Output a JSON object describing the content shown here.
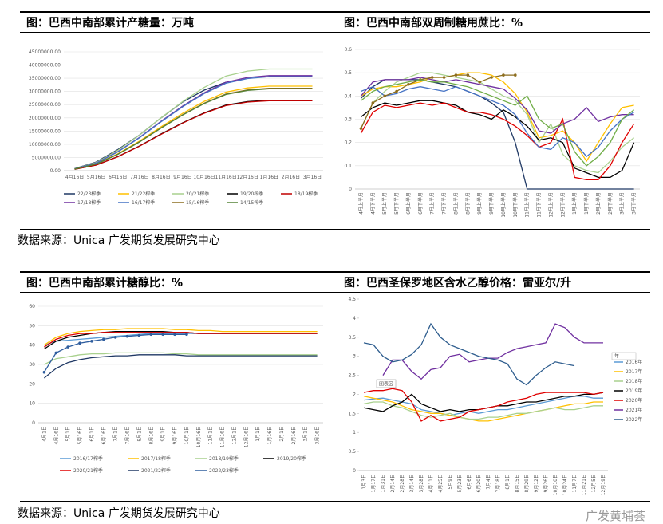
{
  "chart_data": [
    {
      "type": "line",
      "title": "图：巴西中南部累计产糖量：万吨",
      "categories": [
        "4月16日",
        "5月16日",
        "6月16日",
        "7月16日",
        "8月16日",
        "9月16日",
        "10月16日",
        "11月16日",
        "12月16日",
        "1月16日",
        "2月16日",
        "3月16日"
      ],
      "ylim": [
        0,
        45000000
      ],
      "yticks": [
        {
          "value": 0,
          "label": "0.00"
        },
        {
          "value": 5000000,
          "label": "5000000.00"
        },
        {
          "value": 10000000,
          "label": "10000000.00"
        },
        {
          "value": 15000000,
          "label": "15000000.00"
        },
        {
          "value": 20000000,
          "label": "20000000.00"
        },
        {
          "value": 25000000,
          "label": "25000000.00"
        },
        {
          "value": 30000000,
          "label": "30000000.00"
        },
        {
          "value": 35000000,
          "label": "35000000.00"
        },
        {
          "value": 40000000,
          "label": "40000000.00"
        },
        {
          "value": 45000000,
          "label": "45000000.00"
        }
      ],
      "grid": true,
      "legend": "bottom",
      "series": [
        {
          "name": "22/23榨季",
          "color": "#1f3864",
          "values": [
            800000,
            3300000,
            8000000,
            13500000,
            20000000,
            26000000,
            30500000,
            33500000,
            null,
            null,
            null,
            null
          ]
        },
        {
          "name": "21/22榨季",
          "color": "#ffc000",
          "values": [
            640000,
            2560000,
            6400000,
            11200000,
            16640000,
            21760000,
            26240000,
            29760000,
            31360000,
            32000000,
            32000000,
            32000000
          ]
        },
        {
          "name": "20/21榨季",
          "color": "#a9d18e",
          "values": [
            770000,
            3080000,
            7700000,
            13475000,
            20020000,
            26180000,
            31570000,
            35805000,
            37730000,
            38500000,
            38500000,
            38500000
          ]
        },
        {
          "name": "19/20榨季",
          "color": "#000000",
          "values": [
            534000,
            2136000,
            5340000,
            9345000,
            13884000,
            18156000,
            21894000,
            24831000,
            26166000,
            26700000,
            26700000,
            26700000
          ]
        },
        {
          "name": "18/19榨季",
          "color": "#c00000",
          "values": [
            530000,
            2120000,
            5300000,
            9275000,
            13780000,
            18020000,
            21730000,
            24645000,
            25970000,
            26500000,
            26500000,
            26500000
          ]
        },
        {
          "name": "17/18榨季",
          "color": "#7030a0",
          "values": [
            720000,
            2880000,
            7200000,
            12600000,
            18720000,
            24480000,
            29520000,
            33480000,
            35280000,
            36000000,
            36000000,
            36000000
          ]
        },
        {
          "name": "16/17榨季",
          "color": "#4472c4",
          "values": [
            712000,
            2848000,
            7120000,
            12460000,
            18512000,
            24208000,
            29192000,
            33108000,
            34888000,
            35600000,
            35600000,
            35600000
          ]
        },
        {
          "name": "15/16榨季",
          "color": "#8c6d1f",
          "values": [
            624000,
            2496000,
            6240000,
            10920000,
            16224000,
            21216000,
            25584000,
            29016000,
            30576000,
            31200000,
            31200000,
            31200000
          ]
        },
        {
          "name": "14/15榨季",
          "color": "#548235",
          "values": [
            620000,
            2480000,
            6200000,
            10850000,
            16120000,
            21080000,
            25420000,
            28830000,
            30380000,
            31000000,
            31000000,
            31000000
          ]
        }
      ]
    },
    {
      "type": "line",
      "title": "图：巴西中南部双周制糖用蔗比：%",
      "categories": [
        "4月上半月",
        "4月下半月",
        "5月上半月",
        "5月下半月",
        "6月上半月",
        "6月下半月",
        "7月上半月",
        "7月下半月",
        "8月上半月",
        "8月下半月",
        "9月上半月",
        "9月下半月",
        "10月上半月",
        "10月下半月",
        "11月上半月",
        "11月下半月",
        "12月上半月",
        "12月下半月",
        "1月上半月",
        "1月下半月",
        "2月上半月",
        "2月下半月",
        "3月上半月",
        "3月下半月"
      ],
      "ylim": [
        0,
        0.6
      ],
      "yticks": [
        0,
        0.1,
        0.2,
        0.3,
        0.4,
        0.5,
        0.6
      ],
      "grid": true,
      "series": [
        {
          "color": "#1f3864",
          "values": [
            0.39,
            0.44,
            0.47,
            0.47,
            0.47,
            0.47,
            0.46,
            0.45,
            0.44,
            0.42,
            0.4,
            0.37,
            0.33,
            0.2,
            0,
            0,
            0,
            0,
            0,
            0,
            0,
            0,
            0,
            0
          ]
        },
        {
          "color": "#ffc000",
          "values": [
            0.4,
            0.43,
            0.44,
            0.44,
            0.45,
            0.46,
            0.48,
            0.48,
            0.49,
            0.5,
            0.5,
            0.49,
            0.46,
            0.41,
            0.33,
            0.22,
            0.23,
            0.25,
            0.2,
            0.12,
            0.2,
            0.28,
            0.35,
            0.36
          ]
        },
        {
          "color": "#a9d18e",
          "values": [
            0.26,
            0.37,
            0.42,
            0.46,
            0.48,
            0.5,
            0.5,
            0.49,
            0.48,
            0.47,
            0.46,
            0.43,
            0.4,
            0.38,
            0.32,
            0.2,
            0.28,
            0.15,
            0.1,
            0.08,
            0.07,
            0.12,
            0.18,
            0.22
          ]
        },
        {
          "color": "#000000",
          "values": [
            0.31,
            0.35,
            0.37,
            0.36,
            0.37,
            0.38,
            0.38,
            0.37,
            0.36,
            0.33,
            0.32,
            0.3,
            0.34,
            0.31,
            0.27,
            0.21,
            0.22,
            0.2,
            0.09,
            0.07,
            0.05,
            0.05,
            0.08,
            0.2
          ]
        },
        {
          "color": "#e00000",
          "values": [
            0.24,
            0.33,
            0.36,
            0.35,
            0.36,
            0.37,
            0.36,
            0.37,
            0.35,
            0.33,
            0.33,
            0.32,
            0.3,
            0.27,
            0.23,
            0.18,
            0.2,
            0.3,
            0.05,
            0.04,
            0.04,
            0.1,
            0.2,
            0.28
          ]
        },
        {
          "color": "#7030a0",
          "values": [
            0.4,
            0.46,
            0.47,
            0.47,
            0.47,
            0.48,
            0.47,
            0.46,
            0.47,
            0.46,
            0.45,
            0.44,
            0.43,
            0.39,
            0.34,
            0.25,
            0.24,
            0.28,
            0.3,
            0.35,
            0.29,
            0.31,
            0.32,
            0.32
          ]
        },
        {
          "color": "#4472c4",
          "values": [
            0.42,
            0.44,
            0.4,
            0.41,
            0.43,
            0.44,
            0.43,
            0.42,
            0.44,
            0.42,
            0.4,
            0.38,
            0.36,
            0.32,
            0.24,
            0.18,
            0.17,
            0.22,
            0.2,
            0.14,
            0.18,
            0.25,
            0.3,
            0.33
          ]
        },
        {
          "color": "#8c6d1f",
          "marker": true,
          "values": [
            0.26,
            0.37,
            0.4,
            0.42,
            0.45,
            0.47,
            0.48,
            0.48,
            0.49,
            0.49,
            0.46,
            0.48,
            0.49,
            0.49,
            null,
            null,
            null,
            null,
            null,
            null,
            null,
            null,
            null,
            null
          ]
        },
        {
          "color": "#70ad47",
          "values": [
            0.38,
            0.42,
            0.44,
            0.45,
            0.46,
            0.47,
            0.46,
            0.46,
            0.45,
            0.44,
            0.42,
            0.4,
            0.38,
            0.36,
            0.4,
            0.3,
            0.26,
            0.28,
            0.16,
            0.1,
            0.14,
            0.2,
            0.3,
            0.34
          ]
        }
      ]
    },
    {
      "type": "line",
      "title": "图：巴西中南部累计糖醇比：%",
      "categories": [
        "4月1日",
        "4月16日",
        "5月1日",
        "5月16日",
        "6月1日",
        "6月16日",
        "7月1日",
        "7月16日",
        "8月1日",
        "8月16日",
        "9月1日",
        "9月16日",
        "10月1日",
        "10月16日",
        "11月1日",
        "11月16日",
        "12月1日",
        "12月16日",
        "1月1日",
        "1月16日",
        "2月1日",
        "2月16日",
        "3月1日",
        "3月16日"
      ],
      "ylim": [
        0,
        60
      ],
      "yticks": [
        0,
        10,
        20,
        30,
        40,
        50,
        60
      ],
      "grid": true,
      "legend": "bottom",
      "series": [
        {
          "name": "2016/17榨季",
          "color": "#5b9bd5",
          "values": [
            40,
            42,
            42.5,
            43,
            43.5,
            44,
            44.5,
            45,
            45.5,
            46,
            46,
            46,
            46,
            46,
            46,
            46,
            46,
            46,
            46,
            46,
            46,
            46,
            46,
            46
          ]
        },
        {
          "name": "2017/18榨季",
          "color": "#ffc000",
          "values": [
            40,
            44,
            46,
            47,
            47.5,
            48,
            48,
            48.5,
            48.5,
            48.5,
            48.5,
            48,
            48,
            47.5,
            47.5,
            47,
            47,
            47,
            47,
            47,
            47,
            47,
            47,
            47
          ]
        },
        {
          "name": "2018/19榨季",
          "color": "#a9d18e",
          "values": [
            30,
            33,
            34,
            35,
            35.5,
            35.5,
            36,
            36,
            36,
            36,
            36,
            35.5,
            35.5,
            35,
            35,
            35,
            35,
            35,
            35,
            35,
            35,
            35,
            35,
            35
          ]
        },
        {
          "name": "2019/20榨季",
          "color": "#000000",
          "values": [
            38,
            42,
            44,
            45,
            46,
            46.5,
            47,
            47,
            47,
            47,
            47,
            46.5,
            46.5,
            46,
            46,
            46,
            46,
            46,
            46,
            46,
            46,
            46,
            46,
            46
          ]
        },
        {
          "name": "2020/21榨季",
          "color": "#e00000",
          "values": [
            39,
            43,
            45,
            46,
            46,
            46.5,
            46.5,
            46.5,
            46.5,
            46.5,
            46.5,
            46.5,
            46.5,
            46,
            46,
            46,
            46,
            46,
            46,
            46,
            46,
            46,
            46,
            46
          ]
        },
        {
          "name": "2021/22榨季",
          "color": "#1f3864",
          "values": [
            23,
            28,
            31,
            32.5,
            33.5,
            34,
            34.5,
            34.5,
            35,
            35,
            35,
            35,
            34.5,
            34.5,
            34.5,
            34.5,
            34.5,
            34.5,
            34.5,
            34.5,
            34.5,
            34.5,
            34.5,
            34.5
          ]
        },
        {
          "name": "2022/23榨季",
          "color": "#2e5d9e",
          "marker": true,
          "values": [
            26,
            36,
            39,
            41,
            42,
            43,
            44,
            44.5,
            45,
            45.5,
            45.5,
            45.5,
            45.5,
            null,
            null,
            null,
            null,
            null,
            null,
            null,
            null,
            null,
            null,
            null
          ]
        }
      ]
    },
    {
      "type": "line",
      "title": "图：巴西圣保罗地区含水乙醇价格：雷亚尔/升",
      "categories": [
        "1月3日",
        "1月17日",
        "1月31日",
        "2月14日",
        "2月28日",
        "3月14日",
        "3月28日",
        "4月11日",
        "4月25日",
        "5月9日",
        "5月23日",
        "6月6日",
        "6月20日",
        "7月4日",
        "7月18日",
        "8月1日",
        "8月15日",
        "8月29日",
        "9月12日",
        "9月26日",
        "10月10日",
        "10月24日",
        "11月7日",
        "11月21日",
        "12月5日",
        "12月19日"
      ],
      "ylim": [
        0,
        4.5
      ],
      "yticks": [
        0,
        0.5,
        1,
        1.5,
        2,
        2.5,
        3,
        3.5,
        4,
        4.5
      ],
      "grid": false,
      "legend": "right",
      "legend_title": "年",
      "annotation": "图表区",
      "series": [
        {
          "name": "2016年",
          "color": "#5b9bd5",
          "values": [
            1.85,
            1.88,
            1.9,
            1.85,
            1.8,
            1.75,
            1.6,
            1.55,
            1.5,
            1.45,
            1.5,
            1.55,
            1.5,
            1.55,
            1.6,
            1.6,
            1.65,
            1.7,
            1.75,
            1.8,
            1.85,
            1.9,
            1.95,
            1.95,
            1.9,
            1.9
          ]
        },
        {
          "name": "2017年",
          "color": "#ffc000",
          "values": [
            1.95,
            1.9,
            1.85,
            1.8,
            1.7,
            1.6,
            1.55,
            1.5,
            1.5,
            1.45,
            1.4,
            1.35,
            1.3,
            1.3,
            1.35,
            1.4,
            1.45,
            1.5,
            1.55,
            1.6,
            1.65,
            1.7,
            1.75,
            1.75,
            1.8,
            1.8
          ]
        },
        {
          "name": "2018年",
          "color": "#a9d18e",
          "values": [
            1.75,
            1.8,
            1.8,
            1.7,
            1.65,
            1.55,
            1.45,
            1.4,
            1.45,
            1.5,
            1.4,
            1.35,
            1.35,
            1.4,
            1.4,
            1.45,
            1.5,
            1.5,
            1.55,
            1.6,
            1.65,
            1.6,
            1.6,
            1.65,
            1.7,
            1.7
          ]
        },
        {
          "name": "2019年",
          "color": "#000000",
          "values": [
            1.65,
            1.6,
            1.55,
            1.7,
            1.8,
            2.0,
            1.75,
            1.65,
            1.55,
            1.6,
            1.55,
            1.6,
            1.6,
            1.65,
            1.7,
            1.7,
            1.75,
            1.8,
            1.8,
            1.85,
            1.9,
            1.95,
            1.95,
            2.0,
            2.0,
            2.05
          ]
        },
        {
          "name": "2020年",
          "color": "#e00000",
          "values": [
            2.05,
            2.1,
            2.1,
            2.15,
            2.1,
            1.8,
            1.3,
            1.45,
            1.3,
            1.35,
            1.4,
            1.55,
            1.6,
            1.65,
            1.7,
            1.8,
            1.85,
            1.9,
            2.0,
            2.05,
            2.05,
            2.05,
            2.05,
            2.05,
            2.0,
            2.05
          ]
        },
        {
          "name": "2021年",
          "color": "#7030a0",
          "values": [
            null,
            null,
            2.5,
            2.9,
            2.9,
            2.6,
            2.4,
            2.65,
            2.7,
            3.0,
            3.05,
            2.85,
            2.9,
            2.95,
            2.95,
            3.1,
            3.2,
            3.25,
            3.3,
            3.35,
            3.85,
            3.75,
            3.5,
            3.35,
            3.35,
            3.35
          ]
        },
        {
          "name": "2022年",
          "color": "#2e5d8e",
          "values": [
            3.35,
            3.3,
            3.0,
            2.85,
            2.9,
            3.05,
            3.3,
            3.85,
            3.5,
            3.3,
            3.2,
            3.1,
            3.0,
            2.95,
            2.9,
            2.8,
            2.4,
            2.25,
            2.5,
            2.7,
            2.85,
            2.8,
            2.75,
            null,
            null,
            null
          ]
        }
      ]
    }
  ],
  "sources": [
    "数据来源：Unica 广发期货发展研究中心",
    "数据来源：Unica 广发期货发展研究中心"
  ],
  "watermark": "广发黄埔荟"
}
